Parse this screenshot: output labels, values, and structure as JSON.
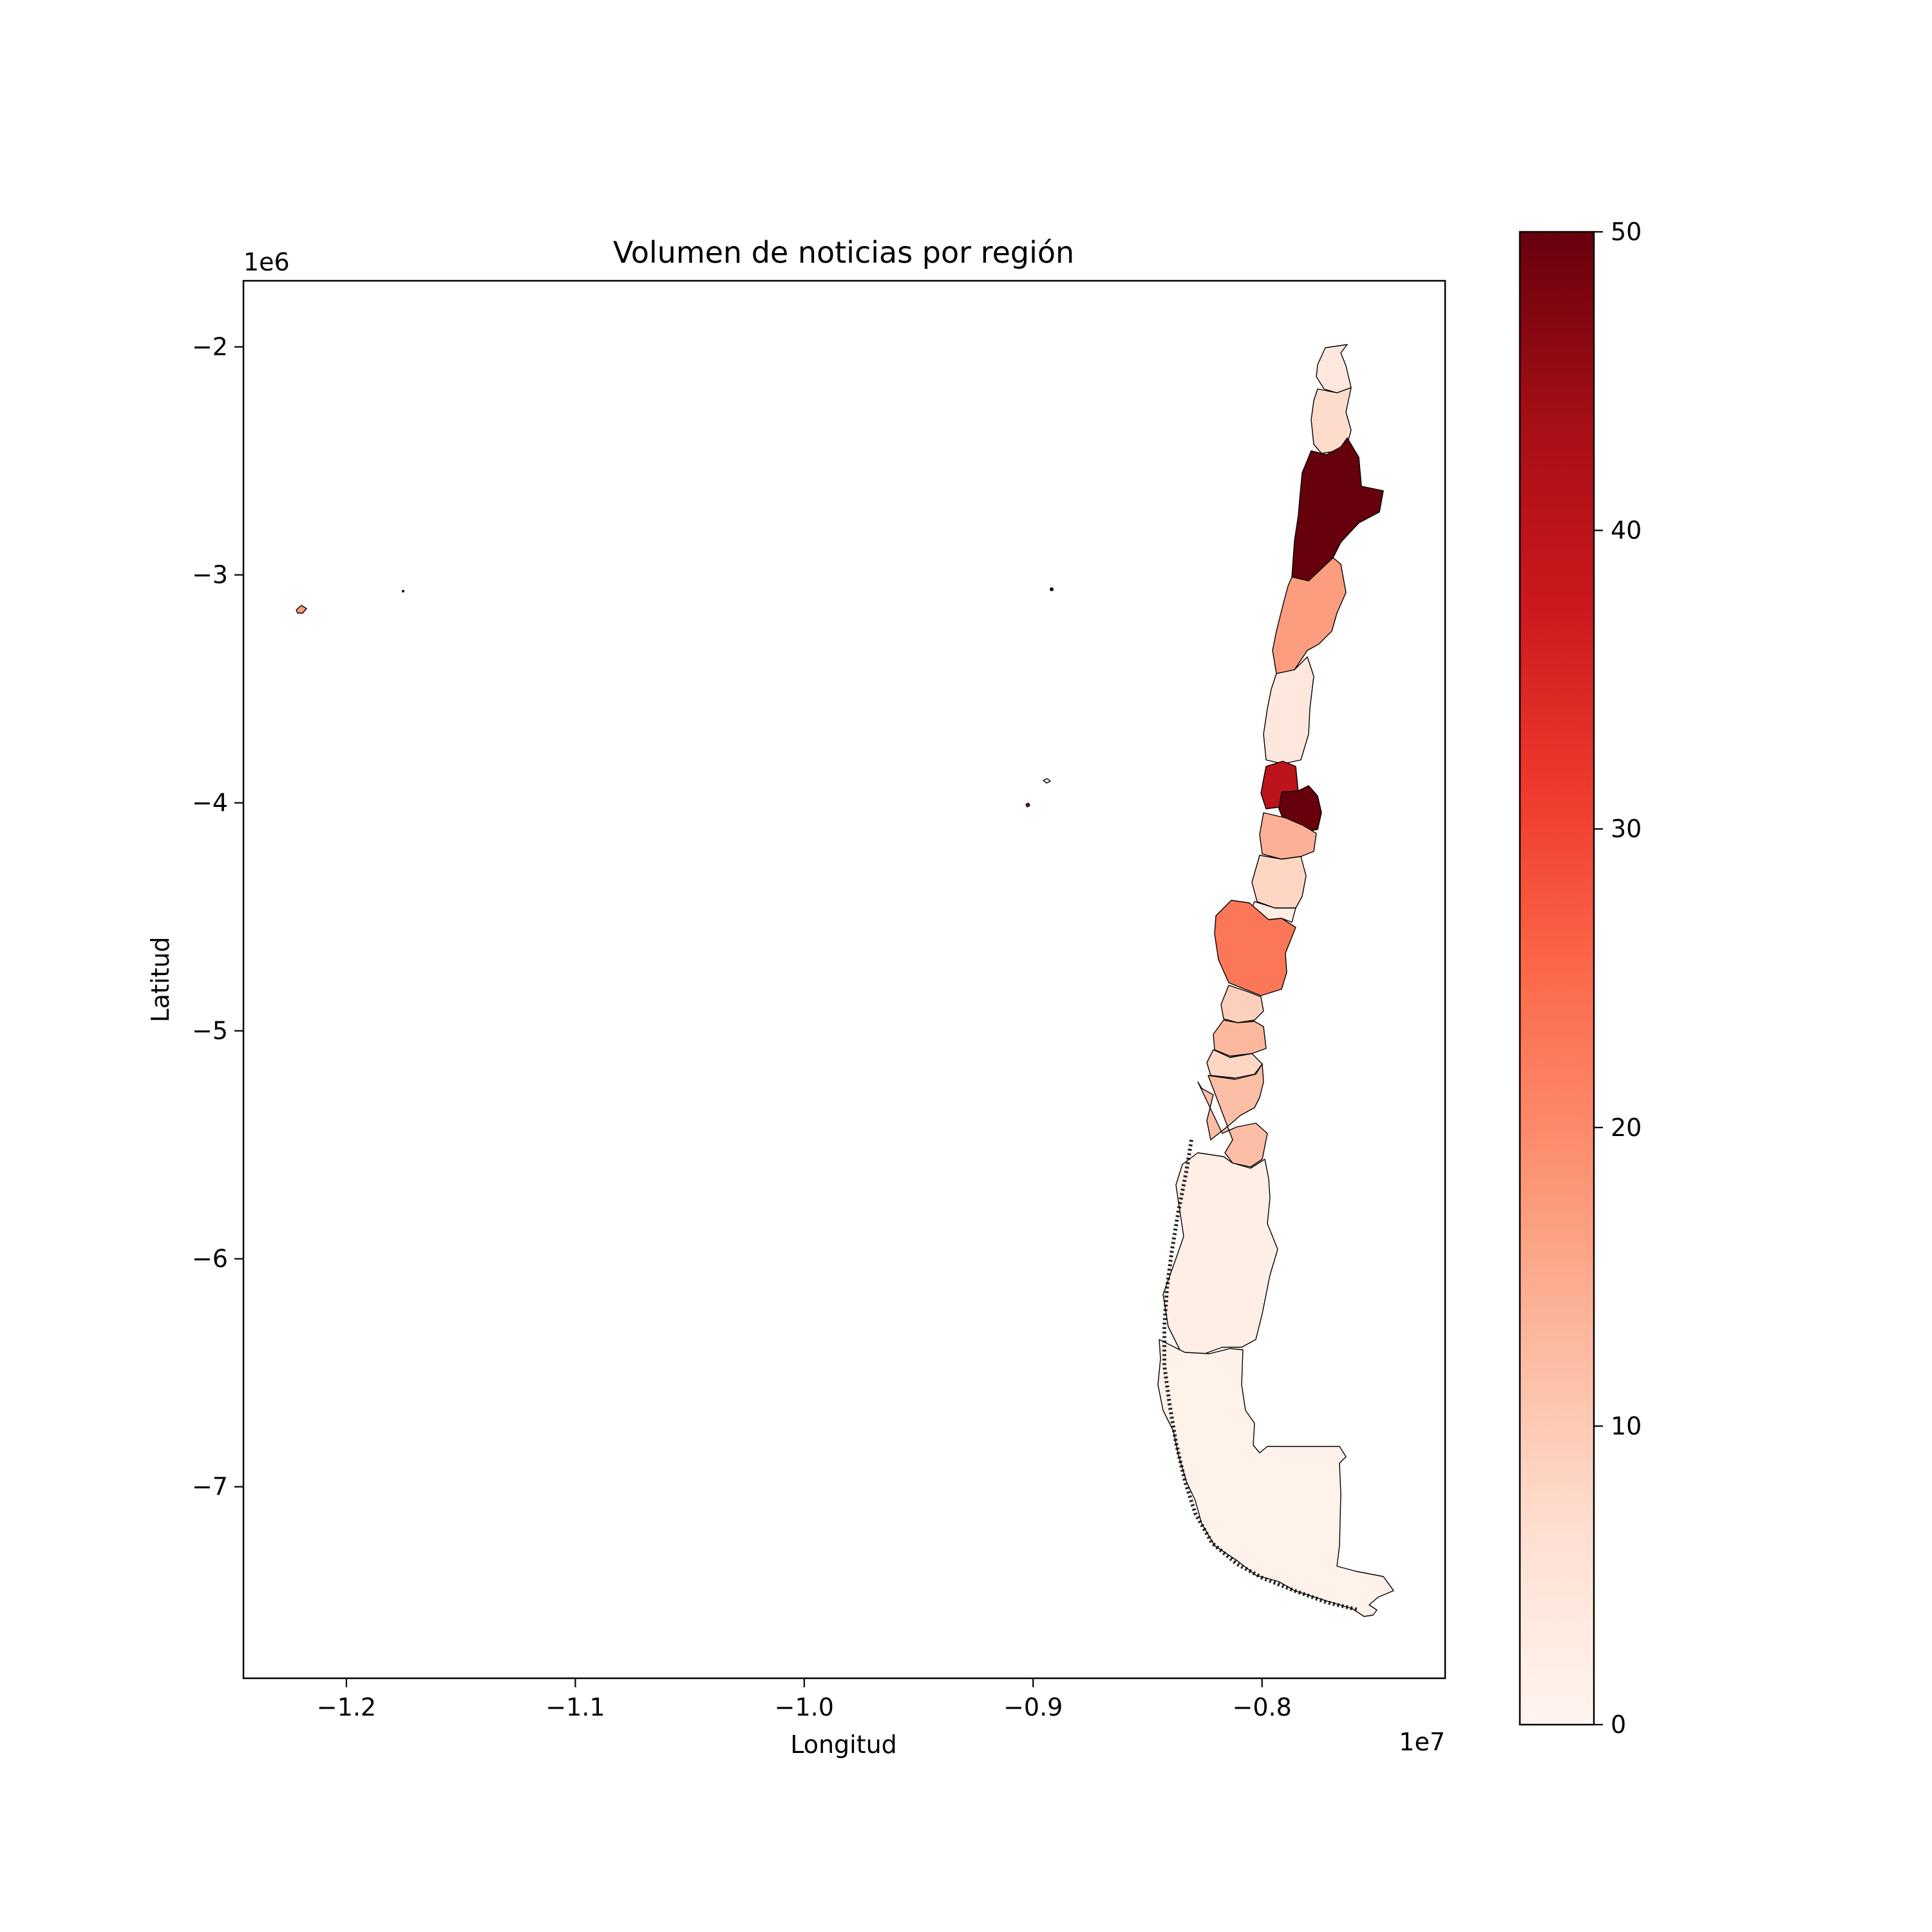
{
  "title": "Volumen de noticias por región",
  "xlabel": "Longitud",
  "ylabel": "Latitud",
  "x_offset_label": "1e7",
  "y_offset_label": "1e6",
  "x_ticks": [
    {
      "value": -1.2,
      "label": "−1.2"
    },
    {
      "value": -1.1,
      "label": "−1.1"
    },
    {
      "value": -1.0,
      "label": "−1.0"
    },
    {
      "value": -0.9,
      "label": "−0.9"
    },
    {
      "value": -0.8,
      "label": "−0.8"
    }
  ],
  "y_ticks": [
    {
      "value": -2,
      "label": "−2"
    },
    {
      "value": -3,
      "label": "−3"
    },
    {
      "value": -4,
      "label": "−4"
    },
    {
      "value": -5,
      "label": "−5"
    },
    {
      "value": -6,
      "label": "−6"
    },
    {
      "value": -7,
      "label": "−7"
    }
  ],
  "colorbar": {
    "colormap": "Reds",
    "min": 0,
    "max": 50,
    "ticks": [
      {
        "value": 0,
        "label": "0"
      },
      {
        "value": 10,
        "label": "10"
      },
      {
        "value": 20,
        "label": "20"
      },
      {
        "value": 30,
        "label": "30"
      },
      {
        "value": 40,
        "label": "40"
      },
      {
        "value": 50,
        "label": "50"
      }
    ],
    "stops": [
      "#fff5f0",
      "#fee0d2",
      "#fcbba1",
      "#fc9272",
      "#fb6a4a",
      "#ef3b2c",
      "#cb181d",
      "#a50f15",
      "#67000d"
    ]
  },
  "chart_data": {
    "type": "choropleth",
    "title": "Volumen de noticias por región",
    "xlabel": "Longitud",
    "ylabel": "Latitud",
    "xlim": [
      -1.245,
      -0.72
    ],
    "ylim": [
      -7.84,
      -1.71
    ],
    "x_scale_label": "1e7",
    "y_scale_label": "1e6",
    "color_range": [
      0,
      50
    ],
    "grid": false,
    "regions": [
      {
        "id": "arica",
        "value": 4
      },
      {
        "id": "tarapaca",
        "value": 7
      },
      {
        "id": "antofagasta",
        "value": 50
      },
      {
        "id": "atacama",
        "value": 17
      },
      {
        "id": "coquimbo",
        "value": 4
      },
      {
        "id": "valparaiso",
        "value": 40
      },
      {
        "id": "metropolitana",
        "value": 50
      },
      {
        "id": "ohiggins",
        "value": 14
      },
      {
        "id": "maule-north",
        "value": 8
      },
      {
        "id": "maule-south",
        "value": 2
      },
      {
        "id": "biobio",
        "value": 23
      },
      {
        "id": "araucania-north",
        "value": 9
      },
      {
        "id": "araucania-south",
        "value": 13
      },
      {
        "id": "los-rios",
        "value": 8
      },
      {
        "id": "los-lagos",
        "value": 12
      },
      {
        "id": "aysen",
        "value": 2
      },
      {
        "id": "magallanes",
        "value": 1
      },
      {
        "id": "rapa-nui",
        "value": 18
      },
      {
        "id": "san-felix",
        "value": 2
      },
      {
        "id": "juan-fernandez",
        "value": 40
      }
    ]
  }
}
